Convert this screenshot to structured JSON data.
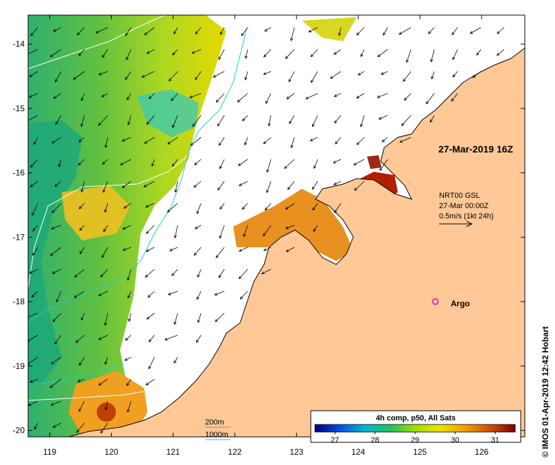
{
  "timestamp_label": "27-Mar-2019 16Z",
  "current_legend": {
    "product": "NRT00 GSL",
    "time": "27-Mar 00:00Z",
    "scale": "0.5m/s (1kt 24h)"
  },
  "argo": {
    "label": "Argo",
    "lon": 125.25,
    "lat": -18.0,
    "color": "#cc33cc"
  },
  "depth_legend": {
    "shallow": {
      "label": "200m",
      "color": "#ffffff"
    },
    "deep": {
      "label": "1000m",
      "color": "#22cccc"
    }
  },
  "colorbar": {
    "title": "4h comp, p50, All Sats",
    "ticks": [
      "27",
      "28",
      "29",
      "30",
      "31"
    ],
    "tick_values": [
      27,
      28,
      29,
      30,
      31
    ],
    "range": [
      26.5,
      31.5
    ],
    "colors": [
      "#00007f",
      "#0050e0",
      "#00b8d0",
      "#20c060",
      "#a0e000",
      "#f0e000",
      "#f0a000",
      "#d05000",
      "#7a0000"
    ]
  },
  "credit": "© IMOS 01-Apr-2019 12:42 Hobart",
  "colors": {
    "land": "#ffc896",
    "no_data": "#ffffff",
    "coast": "#000000"
  },
  "map": {
    "lon_range": [
      118.65,
      126.7
    ],
    "lat_range": [
      -20.1,
      -13.55
    ],
    "x_ticks": [
      "119",
      "120",
      "121",
      "122",
      "123",
      "124",
      "125",
      "126"
    ],
    "x_tick_values": [
      119,
      120,
      121,
      122,
      123,
      124,
      125,
      126
    ],
    "y_ticks": [
      "-14",
      "-15",
      "-16",
      "-17",
      "-18",
      "-19",
      "-20"
    ],
    "y_tick_values": [
      -14,
      -15,
      -16,
      -17,
      -18,
      -19,
      -20
    ]
  }
}
